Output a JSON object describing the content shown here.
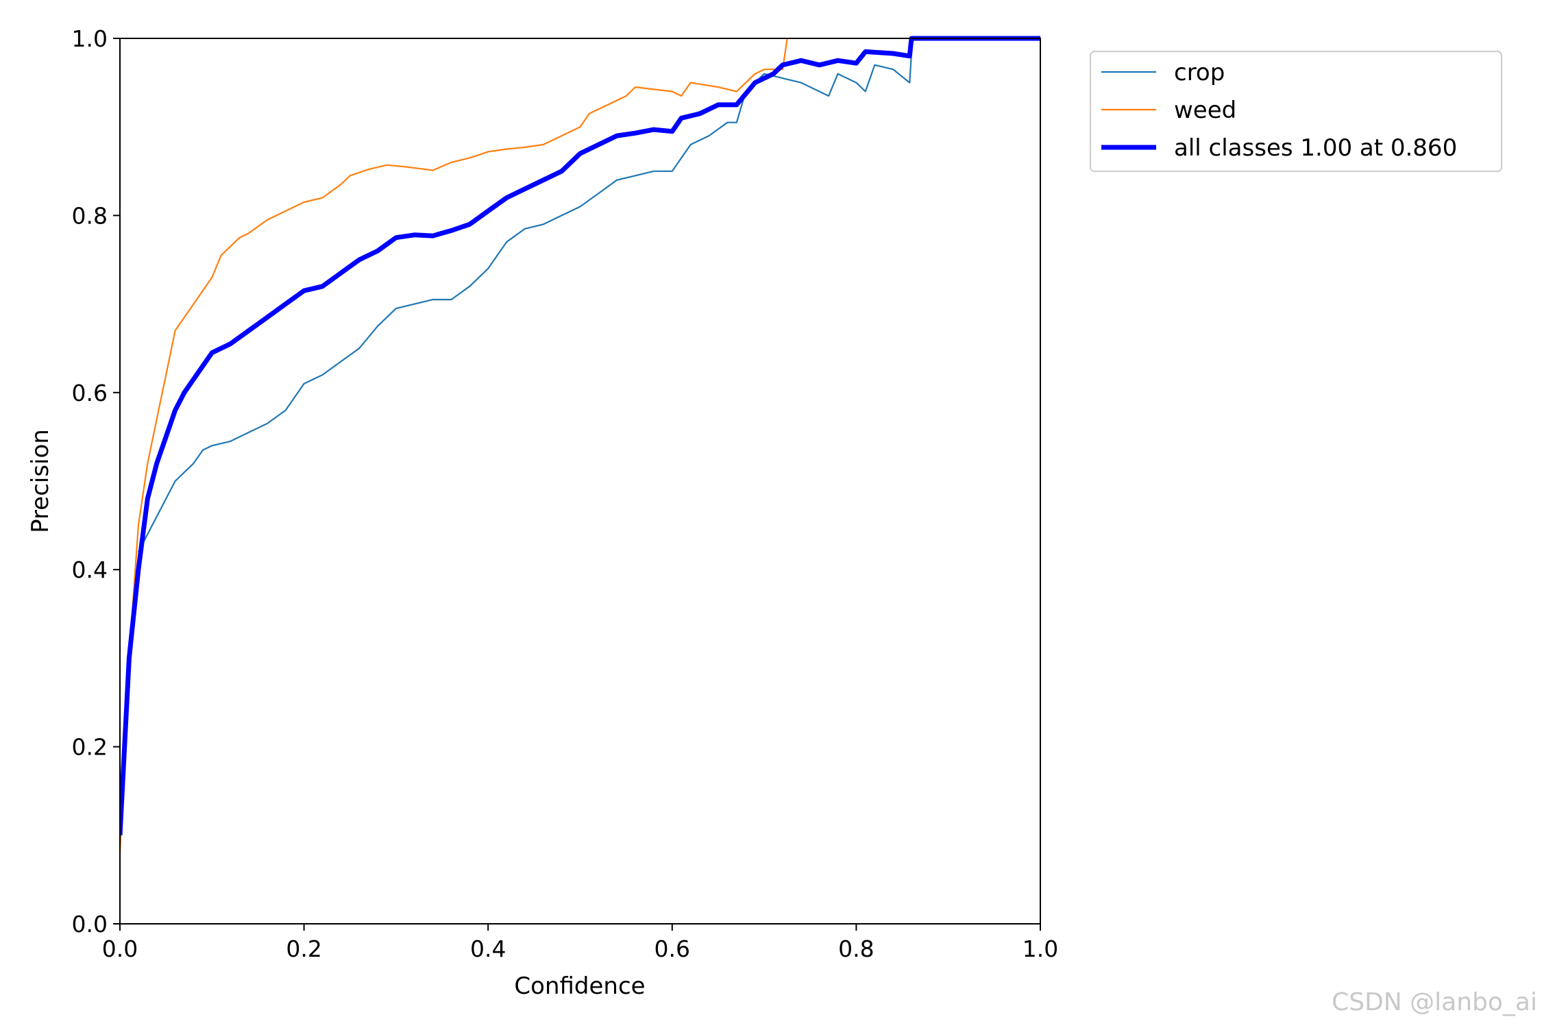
{
  "chart_data": {
    "type": "line",
    "title": "",
    "xlabel": "Confidence",
    "ylabel": "Precision",
    "xlim": [
      0,
      1
    ],
    "ylim": [
      0,
      1
    ],
    "xticks": [
      "0.0",
      "0.2",
      "0.4",
      "0.6",
      "0.8",
      "1.0"
    ],
    "yticks": [
      "0.0",
      "0.2",
      "0.4",
      "0.6",
      "0.8",
      "1.0"
    ],
    "grid": false,
    "legend_position": "outside-top-right",
    "series": [
      {
        "name": "crop",
        "color": "#1f77b4",
        "width": "thin",
        "x": [
          0.02,
          0.03,
          0.04,
          0.05,
          0.06,
          0.07,
          0.08,
          0.09,
          0.1,
          0.12,
          0.14,
          0.16,
          0.18,
          0.2,
          0.22,
          0.24,
          0.26,
          0.28,
          0.3,
          0.32,
          0.34,
          0.36,
          0.38,
          0.4,
          0.42,
          0.44,
          0.46,
          0.48,
          0.5,
          0.52,
          0.54,
          0.56,
          0.58,
          0.6,
          0.62,
          0.64,
          0.66,
          0.67,
          0.68,
          0.7,
          0.72,
          0.74,
          0.76,
          0.77,
          0.78,
          0.8,
          0.81,
          0.82,
          0.84,
          0.858,
          0.861,
          1.0
        ],
        "y": [
          0.42,
          0.44,
          0.46,
          0.48,
          0.5,
          0.51,
          0.52,
          0.535,
          0.54,
          0.545,
          0.555,
          0.565,
          0.58,
          0.61,
          0.62,
          0.635,
          0.65,
          0.675,
          0.695,
          0.7,
          0.705,
          0.705,
          0.72,
          0.74,
          0.77,
          0.785,
          0.79,
          0.8,
          0.81,
          0.825,
          0.84,
          0.845,
          0.85,
          0.85,
          0.88,
          0.89,
          0.905,
          0.905,
          0.94,
          0.96,
          0.955,
          0.95,
          0.94,
          0.935,
          0.96,
          0.95,
          0.94,
          0.97,
          0.965,
          0.95,
          1.0,
          1.0
        ]
      },
      {
        "name": "weed",
        "color": "#ff7f0e",
        "width": "thin",
        "x": [
          0.0,
          0.01,
          0.02,
          0.03,
          0.04,
          0.05,
          0.06,
          0.07,
          0.08,
          0.09,
          0.1,
          0.11,
          0.12,
          0.13,
          0.14,
          0.16,
          0.18,
          0.2,
          0.22,
          0.24,
          0.25,
          0.27,
          0.29,
          0.31,
          0.34,
          0.36,
          0.38,
          0.4,
          0.42,
          0.44,
          0.46,
          0.48,
          0.5,
          0.51,
          0.53,
          0.55,
          0.56,
          0.6,
          0.61,
          0.62,
          0.65,
          0.67,
          0.69,
          0.7,
          0.72,
          0.725
        ],
        "y": [
          0.08,
          0.3,
          0.45,
          0.52,
          0.57,
          0.62,
          0.67,
          0.685,
          0.7,
          0.715,
          0.73,
          0.755,
          0.765,
          0.775,
          0.78,
          0.795,
          0.805,
          0.815,
          0.82,
          0.835,
          0.845,
          0.852,
          0.857,
          0.855,
          0.851,
          0.86,
          0.865,
          0.872,
          0.875,
          0.877,
          0.88,
          0.89,
          0.9,
          0.915,
          0.925,
          0.935,
          0.945,
          0.94,
          0.935,
          0.95,
          0.945,
          0.94,
          0.96,
          0.965,
          0.965,
          1.0
        ]
      },
      {
        "name": "all classes 1.00 at 0.860",
        "color": "#0000ff",
        "width": "thick",
        "x": [
          0.0,
          0.005,
          0.01,
          0.02,
          0.03,
          0.04,
          0.05,
          0.06,
          0.07,
          0.08,
          0.09,
          0.1,
          0.12,
          0.14,
          0.16,
          0.18,
          0.2,
          0.22,
          0.24,
          0.26,
          0.28,
          0.3,
          0.32,
          0.34,
          0.36,
          0.38,
          0.4,
          0.42,
          0.44,
          0.46,
          0.48,
          0.5,
          0.52,
          0.54,
          0.56,
          0.58,
          0.6,
          0.61,
          0.63,
          0.65,
          0.67,
          0.69,
          0.71,
          0.72,
          0.74,
          0.76,
          0.78,
          0.8,
          0.81,
          0.84,
          0.858,
          0.86,
          1.0
        ],
        "y": [
          0.1,
          0.2,
          0.3,
          0.4,
          0.48,
          0.52,
          0.55,
          0.58,
          0.6,
          0.615,
          0.63,
          0.645,
          0.655,
          0.67,
          0.685,
          0.7,
          0.715,
          0.72,
          0.735,
          0.75,
          0.76,
          0.775,
          0.778,
          0.777,
          0.783,
          0.79,
          0.805,
          0.82,
          0.83,
          0.84,
          0.85,
          0.87,
          0.88,
          0.89,
          0.893,
          0.897,
          0.895,
          0.91,
          0.915,
          0.925,
          0.925,
          0.95,
          0.96,
          0.97,
          0.975,
          0.97,
          0.975,
          0.972,
          0.985,
          0.983,
          0.98,
          1.0,
          1.0
        ]
      }
    ]
  },
  "watermark": "CSDN @lanbo_ai"
}
